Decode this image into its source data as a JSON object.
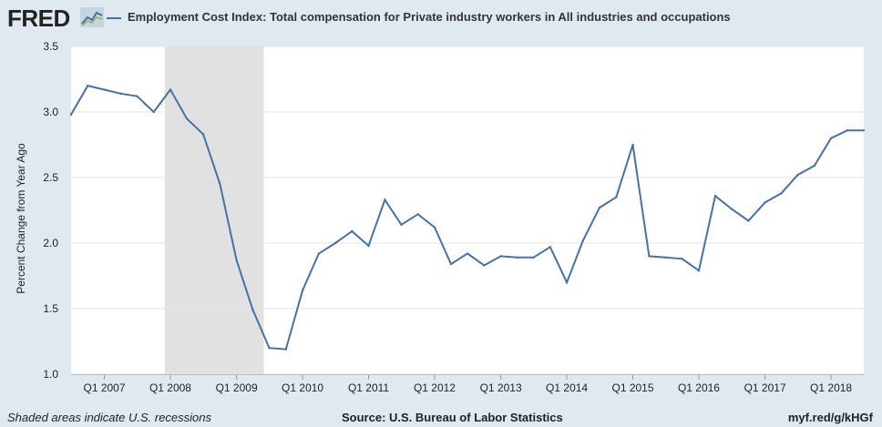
{
  "header": {
    "logo_text": "FRED",
    "logo_icon": "trend-line-icon",
    "title": "Employment Cost Index: Total compensation for Private industry workers in All industries and occupations"
  },
  "footer": {
    "recession_note": "Shaded areas indicate U.S. recessions",
    "source": "Source: U.S. Bureau of Labor Statistics",
    "url": "myf.red/g/kHGf"
  },
  "colors": {
    "series": "#4572a7",
    "recession": "#e1e1e1",
    "background": "#e1e9f0",
    "plot": "#ffffff"
  },
  "chart_data": {
    "type": "line",
    "title": "Employment Cost Index: Total compensation for Private industry workers in All industries and occupations",
    "ylabel": "Percent Change from Year Ago",
    "xlabel": "",
    "ylim": [
      1.0,
      3.5
    ],
    "xlim": [
      "2006-07-01",
      "2018-07-01"
    ],
    "yticks": [
      1.0,
      1.5,
      2.0,
      2.5,
      3.0,
      3.5
    ],
    "ytick_labels": [
      "1.0",
      "1.5",
      "2.0",
      "2.5",
      "3.0",
      "3.5"
    ],
    "xticks": [
      "2007-01-01",
      "2008-01-01",
      "2009-01-01",
      "2010-01-01",
      "2011-01-01",
      "2012-01-01",
      "2013-01-01",
      "2014-01-01",
      "2015-01-01",
      "2016-01-01",
      "2017-01-01",
      "2018-01-01"
    ],
    "xtick_labels": [
      "Q1 2007",
      "Q1 2008",
      "Q1 2009",
      "Q1 2010",
      "Q1 2011",
      "Q1 2012",
      "Q1 2013",
      "Q1 2014",
      "Q1 2015",
      "Q1 2016",
      "Q1 2017",
      "Q1 2018"
    ],
    "grid": true,
    "recessions": [
      {
        "start": "2007-12-01",
        "end": "2009-06-01"
      }
    ],
    "series": [
      {
        "x": [
          "2006-07-01",
          "2006-10-01",
          "2007-01-01",
          "2007-04-01",
          "2007-07-01",
          "2007-10-01",
          "2008-01-01",
          "2008-04-01",
          "2008-07-01",
          "2008-10-01",
          "2009-01-01",
          "2009-04-01",
          "2009-07-01",
          "2009-10-01",
          "2010-01-01",
          "2010-04-01",
          "2010-07-01",
          "2010-10-01",
          "2011-01-01",
          "2011-04-01",
          "2011-07-01",
          "2011-10-01",
          "2012-01-01",
          "2012-04-01",
          "2012-07-01",
          "2012-10-01",
          "2013-01-01",
          "2013-04-01",
          "2013-07-01",
          "2013-10-01",
          "2014-01-01",
          "2014-04-01",
          "2014-07-01",
          "2014-10-01",
          "2015-01-01",
          "2015-04-01",
          "2015-07-01",
          "2015-10-01",
          "2016-01-01",
          "2016-04-01",
          "2016-07-01",
          "2016-10-01",
          "2017-01-01",
          "2017-04-01",
          "2017-07-01",
          "2017-10-01",
          "2018-01-01",
          "2018-04-01",
          "2018-07-01"
        ],
        "values": [
          2.98,
          3.2,
          3.17,
          3.14,
          3.12,
          3.0,
          3.17,
          2.95,
          2.83,
          2.45,
          1.87,
          1.49,
          1.2,
          1.19,
          1.64,
          1.92,
          2.0,
          2.09,
          1.98,
          2.33,
          2.14,
          2.22,
          2.12,
          1.84,
          1.92,
          1.83,
          1.9,
          1.89,
          1.89,
          1.97,
          1.7,
          2.02,
          2.27,
          2.35,
          2.75,
          1.9,
          1.89,
          1.88,
          1.79,
          2.36,
          2.26,
          2.17,
          2.31,
          2.38,
          2.52,
          2.59,
          2.8,
          2.86,
          2.86
        ]
      }
    ]
  }
}
